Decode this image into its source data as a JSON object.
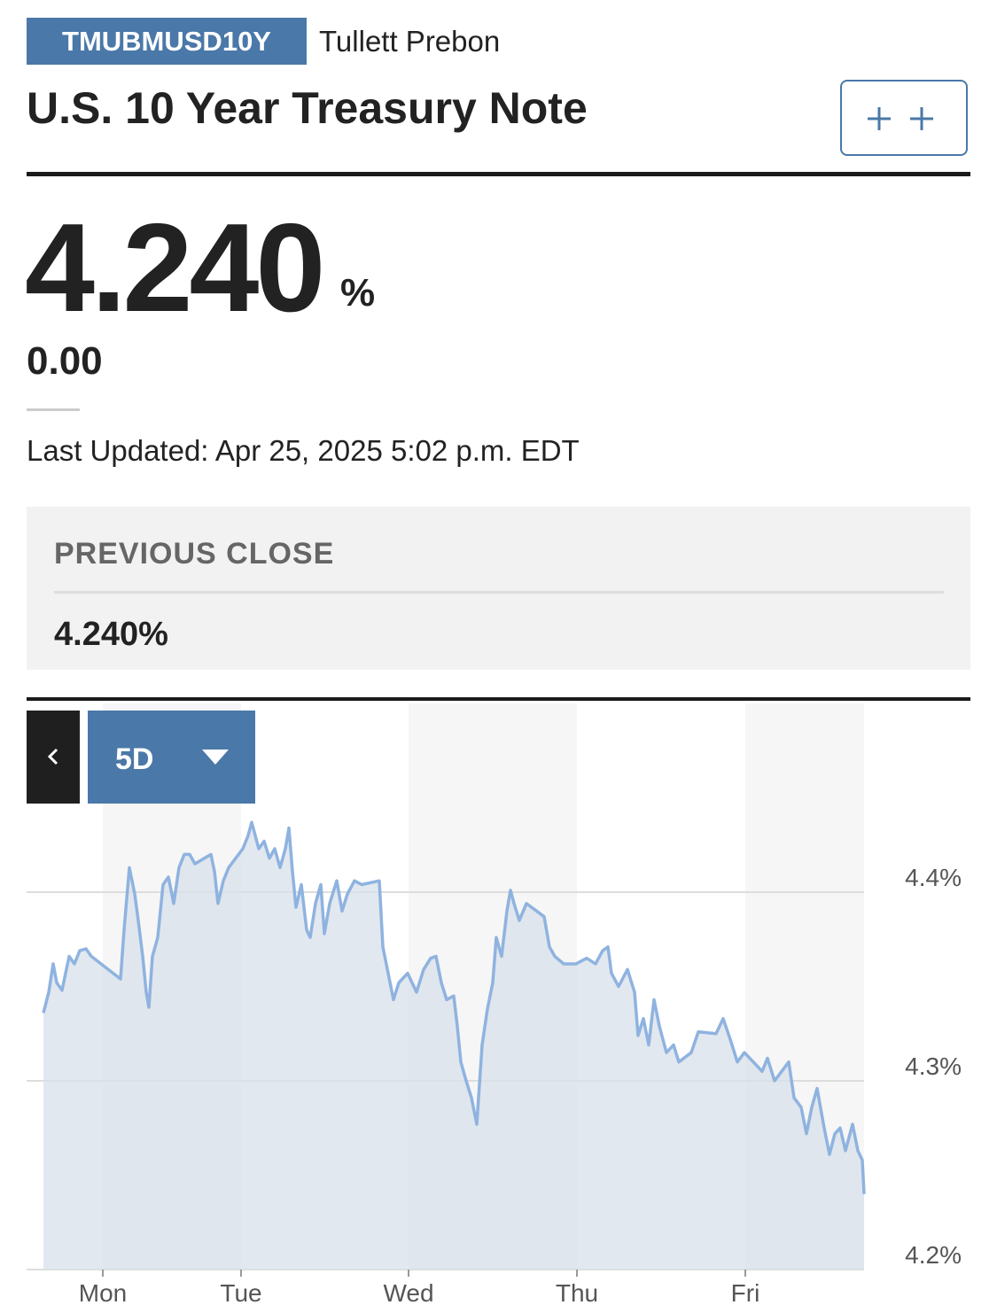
{
  "header": {
    "ticker": "TMUBMUSD10Y",
    "source": "Tullett Prebon",
    "title": "U.S. 10 Year Treasury Note"
  },
  "quote": {
    "value": "4.240",
    "unit": "%",
    "change": "0.00",
    "updated": "Last Updated: Apr 25, 2025 5:02 p.m. EDT"
  },
  "previous_close": {
    "label": "PREVIOUS CLOSE",
    "value": "4.240%"
  },
  "controls": {
    "range": "5D"
  },
  "chart_data": {
    "type": "line",
    "color": "#8fb3e0",
    "grid": true,
    "x": [
      2.375,
      3.125,
      3.75,
      4.25,
      5,
      6,
      6.75,
      7.5,
      8.375,
      9.125,
      13.25,
      13.75,
      14.5,
      15.25,
      15.75,
      16.375,
      16.875,
      17.25,
      17.75,
      18.5,
      19.25,
      20,
      20.75,
      21.5,
      22.25,
      23,
      23.75,
      26,
      26.5,
      27,
      27.75,
      28.5,
      29.5,
      30.5,
      31.25,
      31.75,
      32.25,
      32.75,
      33.5,
      34.25,
      35,
      35.75,
      36.5,
      37,
      37.5,
      38,
      38.75,
      39.5,
      40,
      40.75,
      41.5,
      42,
      42.75,
      43.75,
      44.5,
      45.25,
      46.25,
      47.25,
      49.75,
      50.25,
      51,
      51.75,
      52.5,
      53.75,
      55,
      56,
      57,
      57.75,
      58.5,
      59.25,
      60.25,
      60.75,
      61.25,
      62,
      62.75,
      63.5,
      64.25,
      65,
      65.75,
      66.25,
      67,
      67.75,
      68.25,
      68.75,
      69.5,
      70.5,
      73,
      73.75,
      74.5,
      75.75,
      77.5,
      79,
      80.25,
      81.25,
      82,
      82.5,
      83.5,
      84.75,
      85.75,
      86.25,
      87,
      87.75,
      88.5,
      89.25,
      90.25,
      91.25,
      92,
      93.75,
      94.75,
      97.25,
      98.25,
      99.25,
      100.25,
      101.25,
      102.5,
      103.75,
      104.5,
      105.5,
      106.5,
      107.5,
      108.25,
      109.25,
      110,
      110.75,
      111.5,
      112.5,
      113.25,
      114,
      114.75,
      115.5,
      116.5,
      117.25,
      117.875,
      118.125
    ],
    "values": [
      4.336,
      4.347,
      4.362,
      4.352,
      4.348,
      4.366,
      4.362,
      4.369,
      4.37,
      4.366,
      4.354,
      4.38,
      4.413,
      4.399,
      4.385,
      4.366,
      4.347,
      4.339,
      4.366,
      4.376,
      4.404,
      4.408,
      4.394,
      4.413,
      4.42,
      4.42,
      4.415,
      4.42,
      4.411,
      4.394,
      4.406,
      4.413,
      4.418,
      4.423,
      4.43,
      4.437,
      4.43,
      4.423,
      4.427,
      4.418,
      4.423,
      4.413,
      4.423,
      4.434,
      4.411,
      4.392,
      4.404,
      4.38,
      4.376,
      4.394,
      4.404,
      4.378,
      4.394,
      4.406,
      4.39,
      4.399,
      4.406,
      4.404,
      4.406,
      4.371,
      4.357,
      4.343,
      4.352,
      4.357,
      4.347,
      4.359,
      4.365,
      4.366,
      4.352,
      4.343,
      4.345,
      4.329,
      4.31,
      4.3,
      4.291,
      4.277,
      4.319,
      4.338,
      4.352,
      4.376,
      4.366,
      4.39,
      4.401,
      4.394,
      4.385,
      4.394,
      4.387,
      4.371,
      4.366,
      4.362,
      4.362,
      4.365,
      4.362,
      4.369,
      4.371,
      4.357,
      4.35,
      4.359,
      4.347,
      4.324,
      4.333,
      4.319,
      4.343,
      4.329,
      4.315,
      4.319,
      4.31,
      4.315,
      4.326,
      4.325,
      4.333,
      4.322,
      4.31,
      4.315,
      4.31,
      4.305,
      4.312,
      4.3,
      4.305,
      4.31,
      4.291,
      4.286,
      4.272,
      4.286,
      4.296,
      4.275,
      4.261,
      4.272,
      4.275,
      4.263,
      4.277,
      4.263,
      4.258,
      4.24
    ],
    "xlim": [
      0,
      118.125
    ],
    "xticks": [
      {
        "value": 10.75,
        "label": "Mon"
      },
      {
        "value": 30.25,
        "label": "Tue"
      },
      {
        "value": 53.875,
        "label": "Wed"
      },
      {
        "value": 77.625,
        "label": "Thu"
      },
      {
        "value": 101.375,
        "label": "Fri"
      }
    ],
    "ylim": [
      4.2,
      4.5
    ],
    "yticks": [
      {
        "value": 4.2,
        "label": "4.2%"
      },
      {
        "value": 4.3,
        "label": "4.3%"
      },
      {
        "value": 4.4,
        "label": "4.4%"
      }
    ]
  }
}
